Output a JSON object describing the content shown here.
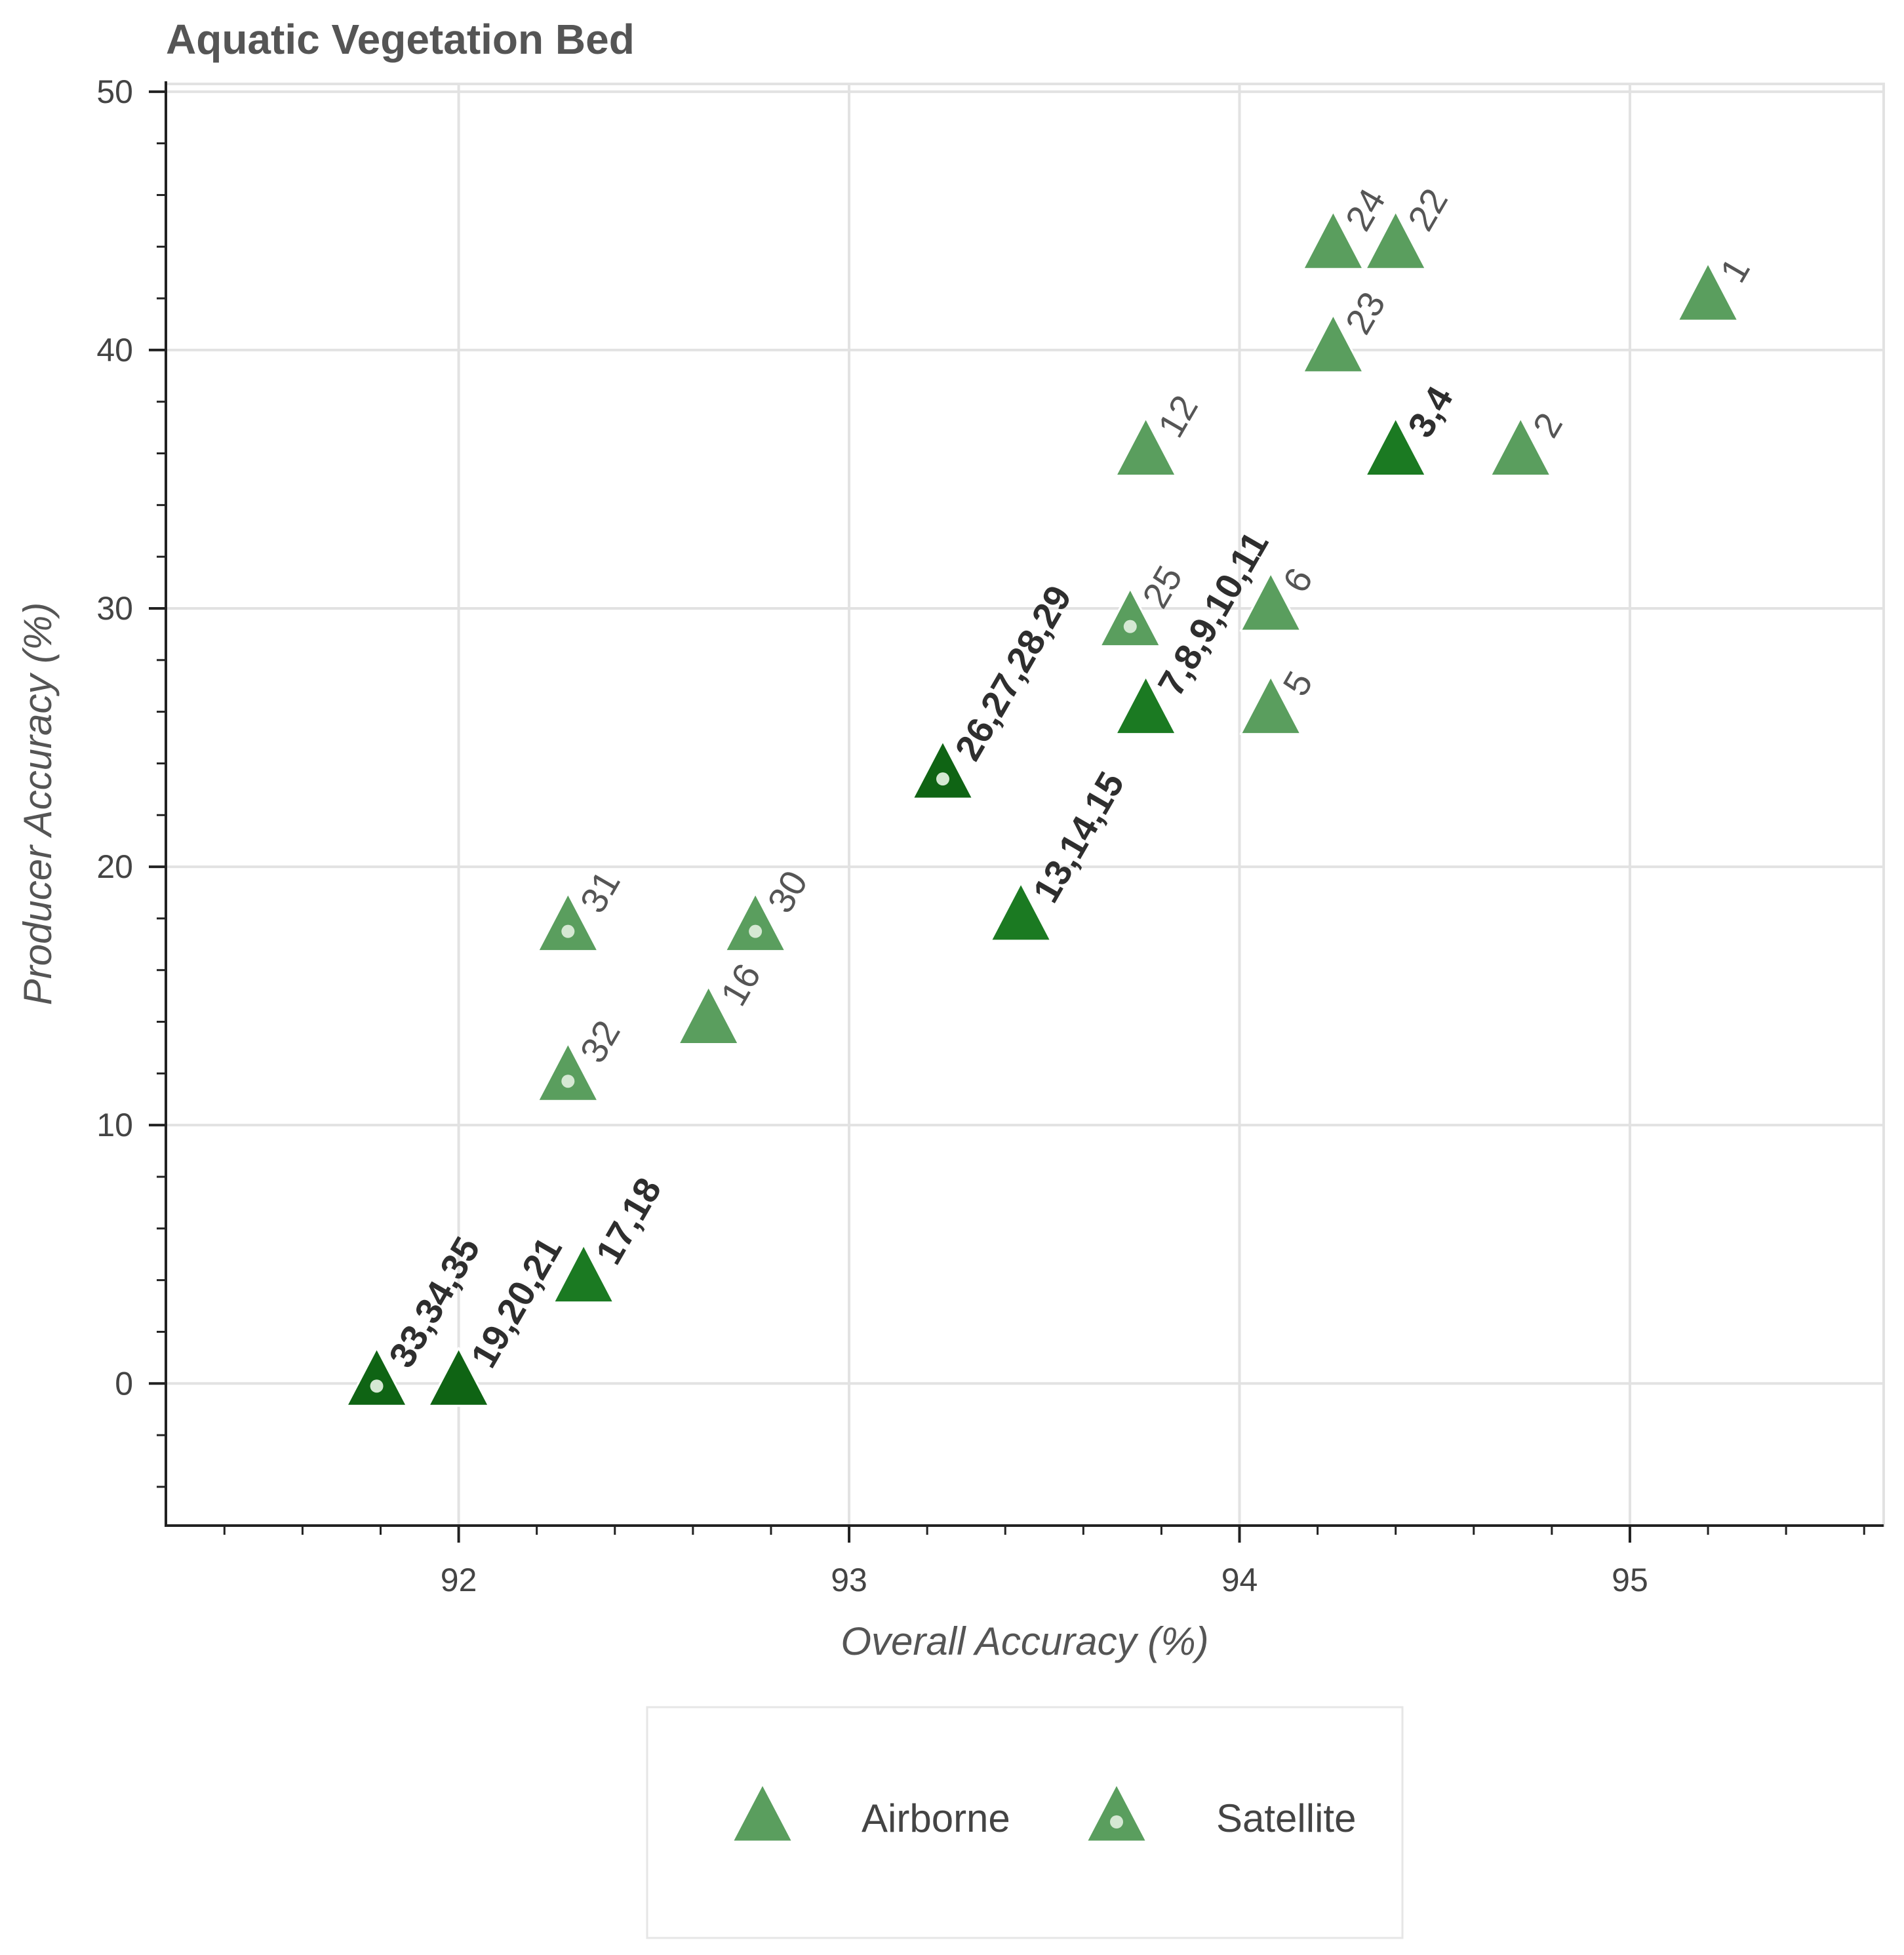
{
  "chart_data": {
    "type": "scatter",
    "title": "Aquatic Vegetation Bed",
    "xlabel": "Overall Accuracy (%)",
    "ylabel": "Producer Accuracy (%)",
    "xlim": [
      91.25,
      95.65
    ],
    "ylim": [
      -5.5,
      50.3
    ],
    "x_ticks": [
      92,
      93,
      94,
      95
    ],
    "y_ticks": [
      0,
      10,
      20,
      30,
      40,
      50
    ],
    "x_tick_labels": [
      "92",
      "93",
      "94",
      "95"
    ],
    "y_tick_labels": [
      "0",
      "10",
      "20",
      "30",
      "40",
      "50"
    ],
    "grid": true,
    "legend": {
      "position": "bottom",
      "entries": [
        {
          "label": "Airborne",
          "marker": "triangle"
        },
        {
          "label": "Satellite",
          "marker": "triangle-dot"
        }
      ]
    },
    "colors": {
      "light": "#5a9e5e",
      "dark": "#1b7a22",
      "darkest": "#0f6414",
      "dot": "#d5e8d3",
      "label_light": "#555555",
      "label_dark": "#2e2e2e",
      "grid": "#e2e2e2",
      "axis": "#222222"
    },
    "points": [
      {
        "label": "1",
        "x": 95.2,
        "y": 42,
        "source": "Airborne",
        "shade": "light"
      },
      {
        "label": "2",
        "x": 94.72,
        "y": 36,
        "source": "Airborne",
        "shade": "light"
      },
      {
        "label": "3,4",
        "x": 94.4,
        "y": 36,
        "source": "Airborne",
        "shade": "dark"
      },
      {
        "label": "5",
        "x": 94.08,
        "y": 26,
        "source": "Airborne",
        "shade": "light"
      },
      {
        "label": "6",
        "x": 94.08,
        "y": 30,
        "source": "Airborne",
        "shade": "light"
      },
      {
        "label": "7,8,9,10,11",
        "x": 93.76,
        "y": 26,
        "source": "Airborne",
        "shade": "dark"
      },
      {
        "label": "12",
        "x": 93.76,
        "y": 36,
        "source": "Airborne",
        "shade": "light"
      },
      {
        "label": "13,14,15",
        "x": 93.44,
        "y": 18,
        "source": "Airborne",
        "shade": "dark"
      },
      {
        "label": "16",
        "x": 92.64,
        "y": 14,
        "source": "Airborne",
        "shade": "light"
      },
      {
        "label": "17,18",
        "x": 92.32,
        "y": 4,
        "source": "Airborne",
        "shade": "dark"
      },
      {
        "label": "19,20,21",
        "x": 92.0,
        "y": 0,
        "source": "Airborne",
        "shade": "darkest"
      },
      {
        "label": "22",
        "x": 94.4,
        "y": 44,
        "source": "Airborne",
        "shade": "light"
      },
      {
        "label": "23",
        "x": 94.24,
        "y": 40,
        "source": "Airborne",
        "shade": "light"
      },
      {
        "label": "24",
        "x": 94.24,
        "y": 44,
        "source": "Airborne",
        "shade": "light"
      },
      {
        "label": "25",
        "x": 93.72,
        "y": 29.4,
        "source": "Satellite",
        "shade": "light"
      },
      {
        "label": "26,27,28,29",
        "x": 93.24,
        "y": 23.5,
        "source": "Satellite",
        "shade": "darkest"
      },
      {
        "label": "30",
        "x": 92.76,
        "y": 17.6,
        "source": "Satellite",
        "shade": "light"
      },
      {
        "label": "31",
        "x": 92.28,
        "y": 17.6,
        "source": "Satellite",
        "shade": "light"
      },
      {
        "label": "32",
        "x": 92.28,
        "y": 11.8,
        "source": "Satellite",
        "shade": "light"
      },
      {
        "label": "33,34,35",
        "x": 91.79,
        "y": 0,
        "source": "Satellite",
        "shade": "darkest"
      }
    ]
  }
}
